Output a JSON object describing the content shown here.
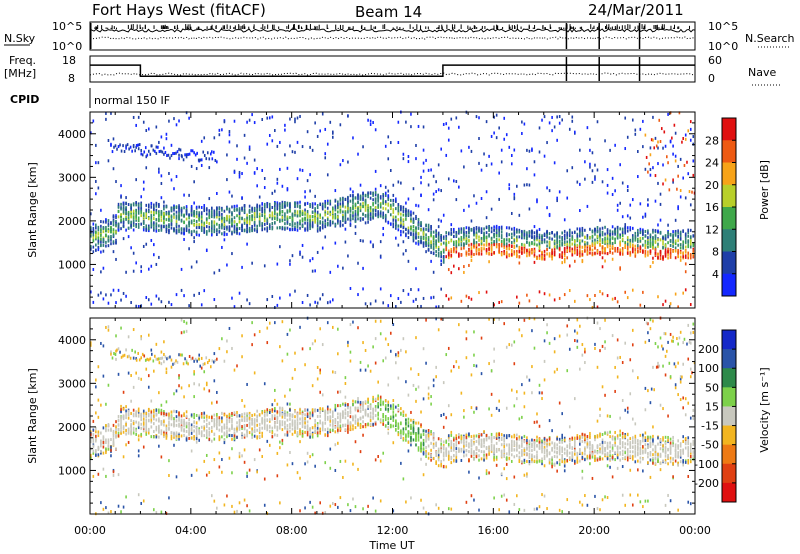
{
  "header": {
    "station": "Fort Hays West (fitACF)",
    "beam": "Beam 14",
    "date": "24/Mar/2011"
  },
  "noise_panel": {
    "left_label": "N.Sky",
    "right_label": "N.Search",
    "left_ticks": [
      "10^5",
      "10^0"
    ],
    "right_ticks": [
      "10^5",
      "10^0"
    ]
  },
  "freq_panel": {
    "left_label_line1": "Freq.",
    "left_label_line2": "[MHz]",
    "right_label": "Nave",
    "left_ticks": [
      "18",
      "8"
    ],
    "right_ticks": [
      "60",
      "0"
    ],
    "freq_steps": [
      {
        "start_h": 0.0,
        "end_h": 2.0,
        "mhz": 14.5
      },
      {
        "start_h": 2.0,
        "end_h": 14.0,
        "mhz": 10.2
      },
      {
        "start_h": 14.0,
        "end_h": 24.0,
        "mhz": 14.5
      }
    ]
  },
  "cpid": {
    "label": "CPID",
    "mode": "normal 150 IF"
  },
  "chart_data": [
    {
      "type": "heatmap",
      "name": "Power",
      "ylabel": "Slant Range [km]",
      "y_ticks": [
        1000,
        2000,
        3000,
        4000
      ],
      "ylim": [
        0,
        4500
      ],
      "xlim_hours": [
        0,
        24
      ],
      "colorbar": {
        "label": "Power [dB]",
        "ticks": [
          "4",
          "8",
          "12",
          "16",
          "20",
          "24",
          "28"
        ],
        "colors": [
          "#1428ff",
          "#1f3fa8",
          "#2e7f77",
          "#3fa84a",
          "#b8cf2a",
          "#f7a318",
          "#ee5a12",
          "#e01010"
        ]
      }
    },
    {
      "type": "heatmap",
      "name": "Velocity",
      "ylabel": "Slant Range [km]",
      "y_ticks": [
        1000,
        2000,
        3000,
        4000
      ],
      "ylim": [
        0,
        4500
      ],
      "xlim_hours": [
        0,
        24
      ],
      "colorbar": {
        "label": "Velocity [m s⁻¹]",
        "ticks": [
          "200",
          "100",
          "50",
          "15",
          "-15",
          "-50",
          "-100",
          "-200"
        ],
        "colors": [
          "#1428c8",
          "#2a54a8",
          "#2e8a4a",
          "#7dd14a",
          "#c8c8be",
          "#f2b520",
          "#ee7a14",
          "#e04012",
          "#e01010"
        ]
      }
    }
  ],
  "x_axis": {
    "ticks": [
      "00:00",
      "04:00",
      "08:00",
      "12:00",
      "16:00",
      "20:00",
      "00:00"
    ],
    "label": "Time UT"
  }
}
